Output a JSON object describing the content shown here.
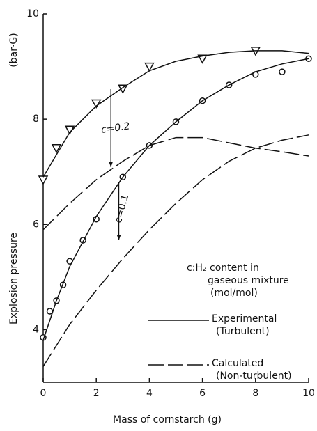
{
  "chart_data": {
    "type": "line",
    "xlabel": "Mass of cornstarch (g)",
    "ylabel": "Explosion pressure",
    "yunit": "(bar·G)",
    "xlim": [
      0,
      10
    ],
    "xticks": [
      0,
      2,
      4,
      6,
      8,
      10
    ],
    "ylim": [
      3,
      10
    ],
    "yticks": [
      4,
      6,
      8,
      10
    ],
    "color": "#111111",
    "series": [
      {
        "marker": "triangle",
        "dash": false,
        "x": [
          0,
          0.5,
          1,
          2,
          3,
          4,
          6,
          8
        ],
        "values": [
          6.85,
          7.45,
          7.8,
          8.3,
          8.58,
          9.0,
          9.15,
          9.3
        ]
      },
      {
        "marker": "circle",
        "dash": false,
        "x": [
          0,
          0.25,
          0.5,
          0.75,
          1,
          1.5,
          2,
          3,
          4,
          5,
          6,
          7,
          8,
          9,
          10
        ],
        "values": [
          3.85,
          4.35,
          4.55,
          4.85,
          5.3,
          5.7,
          6.1,
          6.9,
          7.5,
          7.95,
          8.35,
          8.65,
          8.85,
          8.9,
          9.15
        ]
      },
      {
        "marker": null,
        "dash": false,
        "x": [
          0,
          1,
          2,
          3,
          4,
          5,
          6,
          7,
          8,
          9,
          10
        ],
        "values": [
          6.9,
          7.75,
          8.25,
          8.6,
          8.92,
          9.1,
          9.2,
          9.27,
          9.3,
          9.3,
          9.25
        ]
      },
      {
        "marker": null,
        "dash": false,
        "x": [
          0,
          0.5,
          1,
          2,
          3,
          4,
          5,
          6,
          7,
          8,
          9,
          10
        ],
        "values": [
          3.8,
          4.55,
          5.2,
          6.15,
          6.9,
          7.5,
          7.95,
          8.35,
          8.65,
          8.9,
          9.05,
          9.15
        ]
      },
      {
        "marker": null,
        "dash": true,
        "x": [
          0,
          1,
          2,
          3,
          4,
          5,
          6,
          7,
          8,
          9,
          10
        ],
        "values": [
          5.9,
          6.4,
          6.85,
          7.2,
          7.5,
          7.65,
          7.65,
          7.55,
          7.45,
          7.38,
          7.3
        ]
      },
      {
        "marker": null,
        "dash": true,
        "x": [
          0,
          1,
          2,
          3,
          4,
          5,
          6,
          7,
          8,
          9,
          10
        ],
        "values": [
          3.3,
          4.1,
          4.75,
          5.35,
          5.9,
          6.4,
          6.85,
          7.2,
          7.45,
          7.6,
          7.7
        ]
      }
    ],
    "annotations": [
      "c=0.2",
      "c=0.1"
    ],
    "legend_title": [
      "c:H₂ content in",
      "gaseous mixture",
      "(mol/mol)"
    ],
    "legend": [
      {
        "dash": false,
        "label": [
          "Experimental",
          "(Turbulent)"
        ]
      },
      {
        "dash": true,
        "label": [
          "Calculated",
          "(Non-turbulent)"
        ]
      }
    ]
  }
}
